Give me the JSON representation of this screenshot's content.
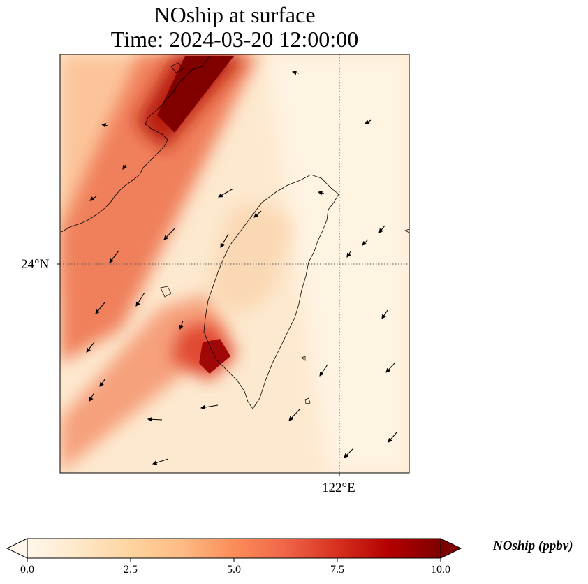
{
  "title": {
    "line1": "NOship at surface",
    "line2": "Time: 2024-03-20 12:00:00"
  },
  "map": {
    "lat_tick_label": "24°N",
    "lon_tick_label": "122°E",
    "gridline_style": "dotted",
    "coastline_color": "#000000",
    "wind_vectors": "black arrows, predominantly north-easterly flow"
  },
  "colorbar": {
    "label": "NOship (ppbv)",
    "colormap": "OrRd",
    "min": 0.0,
    "max": 10.0,
    "ticks": [
      "0.0",
      "2.5",
      "5.0",
      "7.5",
      "10.0"
    ],
    "extend": "both",
    "colors": [
      "#fff7ec",
      "#fee8c8",
      "#fdd49e",
      "#fdbb84",
      "#fc8d59",
      "#ef6548",
      "#d7301f",
      "#b30000",
      "#7f0000"
    ]
  },
  "chart_data": {
    "type": "heatmap",
    "title": "NOship at surface\nTime: 2024-03-20 12:00:00",
    "variable": "NOship",
    "units": "ppbv",
    "value_range": [
      0,
      10
    ],
    "features": [
      {
        "name": "ship corridor along China coast",
        "level_ppbv": 10.0
      },
      {
        "name": "Taiwan Strait southwest hotspot",
        "level_ppbv": 9.0
      },
      {
        "name": "southern strait band",
        "level_ppbv": 4.5
      },
      {
        "name": "open ocean east of Taiwan",
        "level_ppbv": 0.5
      }
    ]
  }
}
